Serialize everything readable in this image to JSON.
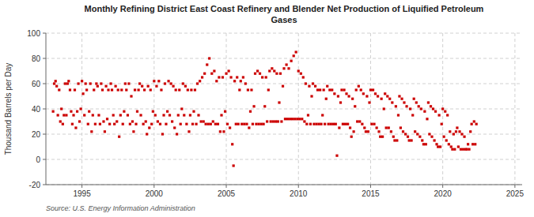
{
  "chart_data": {
    "type": "scatter",
    "title": "Monthly Refining District East Coast Refinery and Blender Net Production of Liquified Petroleum\nGases",
    "ylabel": "Thousand Barrels per Day",
    "annotations": [
      "Source: U.S. Energy Information Administration"
    ],
    "color": "#cc0000",
    "marker": "square",
    "grid": true,
    "xlim": [
      1992.5,
      2025.5
    ],
    "ylim": [
      -20,
      100
    ],
    "xticks": [
      1995,
      2000,
      2005,
      2010,
      2015,
      2020,
      2025
    ],
    "yticks": [
      -20,
      0,
      20,
      40,
      60,
      80,
      100
    ],
    "x": [
      1993.0,
      1993.08,
      1993.17,
      1993.25,
      1993.33,
      1993.42,
      1993.5,
      1993.58,
      1993.67,
      1993.75,
      1993.83,
      1993.92,
      1994.0,
      1994.08,
      1994.17,
      1994.25,
      1994.33,
      1994.42,
      1994.5,
      1994.58,
      1994.67,
      1994.75,
      1994.83,
      1994.92,
      1995.0,
      1995.08,
      1995.17,
      1995.25,
      1995.33,
      1995.42,
      1995.5,
      1995.58,
      1995.67,
      1995.75,
      1995.83,
      1995.92,
      1996.0,
      1996.08,
      1996.17,
      1996.25,
      1996.33,
      1996.42,
      1996.5,
      1996.58,
      1996.67,
      1996.75,
      1996.83,
      1996.92,
      1997.0,
      1997.08,
      1997.17,
      1997.25,
      1997.33,
      1997.42,
      1997.5,
      1997.58,
      1997.67,
      1997.75,
      1997.83,
      1997.92,
      1998.0,
      1998.08,
      1998.17,
      1998.25,
      1998.33,
      1998.42,
      1998.5,
      1998.58,
      1998.67,
      1998.75,
      1998.83,
      1998.92,
      1999.0,
      1999.08,
      1999.17,
      1999.25,
      1999.33,
      1999.42,
      1999.5,
      1999.58,
      1999.67,
      1999.75,
      1999.83,
      1999.92,
      2000.0,
      2000.08,
      2000.17,
      2000.25,
      2000.33,
      2000.42,
      2000.5,
      2000.58,
      2000.67,
      2000.75,
      2000.83,
      2000.92,
      2001.0,
      2001.08,
      2001.17,
      2001.25,
      2001.33,
      2001.42,
      2001.5,
      2001.58,
      2001.67,
      2001.75,
      2001.83,
      2001.92,
      2002.0,
      2002.08,
      2002.17,
      2002.25,
      2002.33,
      2002.42,
      2002.5,
      2002.58,
      2002.67,
      2002.75,
      2002.83,
      2002.92,
      2003.0,
      2003.08,
      2003.17,
      2003.25,
      2003.33,
      2003.42,
      2003.5,
      2003.58,
      2003.67,
      2003.75,
      2003.83,
      2003.92,
      2004.0,
      2004.08,
      2004.17,
      2004.25,
      2004.33,
      2004.42,
      2004.5,
      2004.58,
      2004.67,
      2004.75,
      2004.83,
      2004.92,
      2005.0,
      2005.08,
      2005.17,
      2005.25,
      2005.33,
      2005.42,
      2005.5,
      2005.58,
      2005.67,
      2005.75,
      2005.83,
      2005.92,
      2006.0,
      2006.08,
      2006.17,
      2006.25,
      2006.33,
      2006.42,
      2006.5,
      2006.58,
      2006.67,
      2006.75,
      2006.83,
      2006.92,
      2007.0,
      2007.08,
      2007.17,
      2007.25,
      2007.33,
      2007.42,
      2007.5,
      2007.58,
      2007.67,
      2007.75,
      2007.83,
      2007.92,
      2008.0,
      2008.08,
      2008.17,
      2008.25,
      2008.33,
      2008.42,
      2008.5,
      2008.58,
      2008.67,
      2008.75,
      2008.83,
      2008.92,
      2009.0,
      2009.08,
      2009.17,
      2009.25,
      2009.33,
      2009.42,
      2009.5,
      2009.58,
      2009.67,
      2009.75,
      2009.83,
      2009.92,
      2010.0,
      2010.08,
      2010.17,
      2010.25,
      2010.33,
      2010.42,
      2010.5,
      2010.58,
      2010.67,
      2010.75,
      2010.83,
      2010.92,
      2011.0,
      2011.08,
      2011.17,
      2011.25,
      2011.33,
      2011.42,
      2011.5,
      2011.58,
      2011.67,
      2011.75,
      2011.83,
      2011.92,
      2012.0,
      2012.08,
      2012.17,
      2012.25,
      2012.33,
      2012.42,
      2012.5,
      2012.58,
      2012.67,
      2012.75,
      2012.83,
      2012.92,
      2013.0,
      2013.08,
      2013.17,
      2013.25,
      2013.33,
      2013.42,
      2013.5,
      2013.58,
      2013.67,
      2013.75,
      2013.83,
      2013.92,
      2014.0,
      2014.08,
      2014.17,
      2014.25,
      2014.33,
      2014.42,
      2014.5,
      2014.58,
      2014.67,
      2014.75,
      2014.83,
      2014.92,
      2015.0,
      2015.08,
      2015.17,
      2015.25,
      2015.33,
      2015.42,
      2015.5,
      2015.58,
      2015.67,
      2015.75,
      2015.83,
      2015.92,
      2016.0,
      2016.08,
      2016.17,
      2016.25,
      2016.33,
      2016.42,
      2016.5,
      2016.58,
      2016.67,
      2016.75,
      2016.83,
      2016.92,
      2017.0,
      2017.08,
      2017.17,
      2017.25,
      2017.33,
      2017.42,
      2017.5,
      2017.58,
      2017.67,
      2017.75,
      2017.83,
      2017.92,
      2018.0,
      2018.08,
      2018.17,
      2018.25,
      2018.33,
      2018.42,
      2018.5,
      2018.58,
      2018.67,
      2018.75,
      2018.83,
      2018.92,
      2019.0,
      2019.08,
      2019.17,
      2019.25,
      2019.33,
      2019.42,
      2019.5,
      2019.58,
      2019.67,
      2019.75,
      2019.83,
      2019.92,
      2020.0,
      2020.08,
      2020.17,
      2020.25,
      2020.33,
      2020.42,
      2020.5,
      2020.58,
      2020.67,
      2020.75,
      2020.83,
      2020.92,
      2021.0,
      2021.08,
      2021.17,
      2021.25,
      2021.33,
      2021.42,
      2021.5,
      2021.58,
      2021.67,
      2021.75,
      2021.83,
      2021.92,
      2022.0,
      2022.08,
      2022.17,
      2022.25,
      2022.33
    ],
    "values": [
      38,
      60,
      62,
      58,
      35,
      55,
      30,
      40,
      28,
      35,
      60,
      35,
      60,
      62,
      55,
      38,
      28,
      35,
      55,
      25,
      38,
      60,
      30,
      40,
      62,
      52,
      35,
      60,
      55,
      28,
      38,
      60,
      22,
      35,
      55,
      28,
      60,
      58,
      35,
      28,
      60,
      55,
      30,
      22,
      58,
      32,
      55,
      28,
      60,
      55,
      35,
      28,
      58,
      30,
      55,
      18,
      35,
      55,
      28,
      38,
      60,
      55,
      35,
      60,
      28,
      50,
      30,
      22,
      55,
      28,
      38,
      55,
      60,
      35,
      58,
      28,
      55,
      30,
      20,
      58,
      25,
      55,
      28,
      38,
      62,
      35,
      58,
      30,
      62,
      28,
      55,
      20,
      35,
      60,
      28,
      38,
      62,
      35,
      60,
      30,
      58,
      25,
      55,
      20,
      35,
      55,
      28,
      40,
      60,
      35,
      58,
      28,
      55,
      22,
      35,
      55,
      28,
      38,
      55,
      28,
      60,
      35,
      62,
      30,
      65,
      30,
      68,
      28,
      75,
      28,
      80,
      28,
      68,
      30,
      70,
      28,
      62,
      28,
      65,
      22,
      35,
      65,
      22,
      38,
      68,
      28,
      70,
      25,
      65,
      12,
      -5,
      62,
      28,
      65,
      28,
      55,
      62,
      28,
      65,
      28,
      60,
      28,
      55,
      25,
      38,
      55,
      28,
      42,
      68,
      28,
      70,
      28,
      68,
      28,
      65,
      28,
      42,
      65,
      30,
      55,
      70,
      30,
      72,
      30,
      70,
      30,
      68,
      30,
      45,
      68,
      30,
      58,
      72,
      32,
      75,
      32,
      72,
      32,
      78,
      32,
      82,
      32,
      85,
      32,
      70,
      32,
      68,
      32,
      65,
      30,
      60,
      28,
      35,
      58,
      28,
      50,
      60,
      28,
      58,
      28,
      55,
      28,
      55,
      28,
      35,
      55,
      28,
      48,
      58,
      28,
      55,
      28,
      55,
      28,
      52,
      28,
      3,
      50,
      25,
      45,
      55,
      28,
      55,
      28,
      52,
      28,
      50,
      25,
      18,
      48,
      22,
      42,
      55,
      30,
      58,
      30,
      55,
      28,
      52,
      25,
      22,
      50,
      22,
      45,
      55,
      28,
      55,
      28,
      52,
      25,
      50,
      22,
      18,
      48,
      18,
      40,
      52,
      25,
      50,
      25,
      48,
      22,
      45,
      18,
      15,
      42,
      15,
      35,
      50,
      25,
      48,
      22,
      45,
      20,
      42,
      18,
      15,
      40,
      15,
      35,
      48,
      22,
      45,
      20,
      42,
      18,
      40,
      15,
      12,
      38,
      12,
      32,
      45,
      20,
      42,
      18,
      40,
      15,
      38,
      12,
      10,
      35,
      10,
      28,
      40,
      18,
      38,
      15,
      35,
      12,
      22,
      10,
      8,
      20,
      8,
      22,
      25,
      10,
      22,
      8,
      20,
      8,
      18,
      8,
      8,
      12,
      8,
      22,
      28,
      12,
      30,
      12,
      28
    ]
  }
}
